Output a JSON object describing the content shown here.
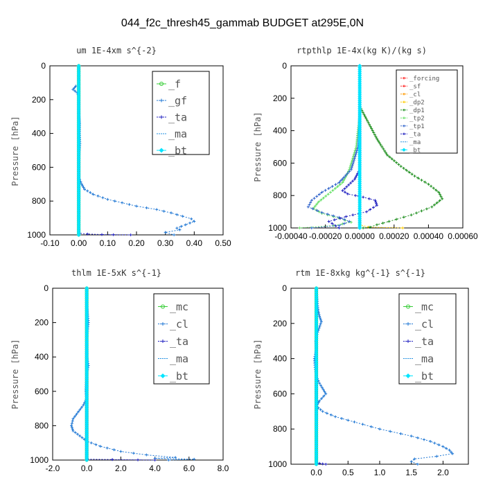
{
  "figure_title": "044_f2c_thresh45_gammab  BUDGET at295E,0N",
  "chart_data": [
    {
      "type": "line",
      "title": "um  1E-4xm s^{-2}",
      "ylabel": "Pressure [hPa]",
      "xlim": [
        -0.1,
        0.5
      ],
      "ylim": [
        1000,
        0
      ],
      "xticks": [
        "-0.10",
        "0.00",
        "0.10",
        "0.20",
        "0.30",
        "0.40",
        "0.50"
      ],
      "xtick_values": [
        -0.1,
        0.0,
        0.1,
        0.2,
        0.3,
        0.4,
        0.5
      ],
      "yticks": [
        "0",
        "200",
        "400",
        "600",
        "800",
        "1000"
      ],
      "ytick_values": [
        0,
        200,
        400,
        600,
        800,
        1000
      ],
      "grid": false,
      "legend_position": "top-right",
      "series": [
        {
          "name": "_f",
          "color": "#33cc33",
          "marker": "o",
          "x": [
            0.0,
            0.0,
            0.0,
            0.0,
            0.0,
            0.0
          ],
          "y": [
            0,
            200,
            400,
            600,
            800,
            1000
          ]
        },
        {
          "name": "_gf",
          "color": "#1f77d4",
          "marker": "+",
          "x": [
            -0.01,
            -0.02,
            -0.005,
            0.0,
            0.0,
            0.0,
            0.003,
            0.002,
            0.004,
            0.0,
            0.0,
            0.01,
            0.02,
            0.05,
            0.1,
            0.15,
            0.2,
            0.27,
            0.32,
            0.36,
            0.39,
            0.4,
            0.37,
            0.34,
            0.35,
            0.3,
            0.33
          ],
          "y": [
            120,
            140,
            160,
            180,
            220,
            280,
            340,
            400,
            460,
            560,
            660,
            700,
            730,
            760,
            790,
            810,
            830,
            850,
            870,
            890,
            905,
            920,
            940,
            960,
            970,
            985,
            1000
          ]
        },
        {
          "name": "_ta",
          "color": "#2020c0",
          "marker": "+",
          "x": [
            0.0,
            0.0,
            0.0,
            0.03,
            0.08,
            0.12,
            0.18
          ],
          "y": [
            0,
            600,
            990,
            995,
            998,
            999,
            1000
          ]
        },
        {
          "name": "_ma",
          "color": "#1f8fe0",
          "marker": "-",
          "x": [
            0.0,
            0.0,
            0.0
          ],
          "y": [
            0,
            500,
            1000
          ]
        },
        {
          "name": "_bt",
          "color": "#00e5ff",
          "marker": "d",
          "x": [
            0.0,
            0.0,
            0.0
          ],
          "y": [
            0,
            500,
            1000
          ]
        }
      ]
    },
    {
      "type": "line",
      "title": "rtpthlp  1E-4x(kg K)/(kg s)",
      "ylabel": "Pressure [hPa]",
      "xlim": [
        -0.0004,
        0.0006
      ],
      "ylim": [
        1000,
        0
      ],
      "xticks": [
        "-0.00040",
        "-0.00020",
        "0.00000",
        "0.00020",
        "0.00040",
        "0.00060"
      ],
      "xtick_values": [
        -0.0004,
        -0.0002,
        0.0,
        0.0002,
        0.0004,
        0.0006
      ],
      "yticks": [
        "0",
        "200",
        "400",
        "600",
        "800",
        "1000"
      ],
      "ytick_values": [
        0,
        200,
        400,
        600,
        800,
        1000
      ],
      "grid": false,
      "legend_position": "top-right",
      "series": [
        {
          "name": "_forcing",
          "color": "#ff2020",
          "marker": "+",
          "x": [
            0.0,
            0.0,
            0.0
          ],
          "y": [
            0,
            500,
            1000
          ]
        },
        {
          "name": "_sf",
          "color": "#ff2020",
          "marker": "+",
          "x": [
            0.0,
            0.0,
            0.0
          ],
          "y": [
            0,
            500,
            1000
          ]
        },
        {
          "name": "_cl",
          "color": "#ff9900",
          "marker": "+",
          "x": [
            0.0,
            0.0,
            0.0
          ],
          "y": [
            0,
            500,
            1000
          ]
        },
        {
          "name": "_dp2",
          "color": "#ffcc00",
          "marker": "+",
          "x": [
            0.0,
            0.0,
            5e-05,
            0.00025
          ],
          "y": [
            0,
            980,
            995,
            1000
          ]
        },
        {
          "name": "_dp1",
          "color": "#1f8f1f",
          "marker": "+",
          "x": [
            0.0,
            0.0,
            5e-05,
            0.0001,
            0.00016,
            0.00024,
            0.00032,
            0.0004,
            0.00046,
            0.00048,
            0.00042,
            0.0003,
            0.00017,
            0.0001,
            6e-05,
            2e-05
          ],
          "y": [
            0,
            250,
            350,
            450,
            550,
            620,
            680,
            730,
            780,
            820,
            870,
            920,
            960,
            980,
            995,
            1000
          ]
        },
        {
          "name": "_tp2",
          "color": "#66e066",
          "marker": "+",
          "x": [
            0.0,
            -2e-05,
            -6e-05,
            -0.0001,
            -0.00017,
            -0.00024,
            -0.00027,
            -0.00022,
            -0.00012,
            -5e-05,
            -0.00015,
            -0.00035
          ],
          "y": [
            300,
            500,
            640,
            720,
            780,
            840,
            880,
            910,
            940,
            965,
            985,
            1000
          ]
        },
        {
          "name": "_tp1",
          "color": "#3366cc",
          "marker": "+",
          "x": [
            0.0,
            -1e-05,
            -5e-05,
            -0.00012,
            -0.00022,
            -0.00028,
            -0.0003,
            -0.00022,
            -0.00012,
            -6e-05,
            -0.00012,
            -0.00028
          ],
          "y": [
            300,
            500,
            640,
            720,
            780,
            830,
            870,
            905,
            935,
            960,
            985,
            1000
          ]
        },
        {
          "name": "_ta",
          "color": "#2020c0",
          "marker": "+",
          "x": [
            0.0,
            0.0,
            -3e-05,
            -0.0001,
            -7e-05,
            2e-05,
            9e-05,
            0.0001,
            4e-05,
            -8e-05,
            -0.00018,
            -0.00012
          ],
          "y": [
            0,
            640,
            700,
            770,
            790,
            810,
            830,
            860,
            900,
            930,
            960,
            1000
          ]
        },
        {
          "name": "_ma",
          "color": "#1f8fe0",
          "marker": "-",
          "x": [
            0.0,
            0.0,
            0.0
          ],
          "y": [
            0,
            500,
            1000
          ]
        },
        {
          "name": "_bt",
          "color": "#00e5ff",
          "marker": "d",
          "x": [
            0.0,
            0.0,
            0.0
          ],
          "y": [
            0,
            500,
            1000
          ]
        }
      ]
    },
    {
      "type": "line",
      "title": "thlm  1E-5xK s^{-1}",
      "ylabel": "Pressure [hPa]",
      "xlim": [
        -2.0,
        8.0
      ],
      "ylim": [
        1000,
        0
      ],
      "xticks": [
        "-2.0",
        "0.0",
        "2.0",
        "4.0",
        "6.0",
        "8.0"
      ],
      "xtick_values": [
        -2.0,
        0.0,
        2.0,
        4.0,
        6.0,
        8.0
      ],
      "yticks": [
        "0",
        "200",
        "400",
        "600",
        "800",
        "1000"
      ],
      "ytick_values": [
        0,
        200,
        400,
        600,
        800,
        1000
      ],
      "grid": false,
      "legend_position": "top-right",
      "series": [
        {
          "name": "_mc",
          "color": "#33cc33",
          "marker": "o",
          "x": [
            0.0,
            0.0,
            0.0,
            0.0,
            0.0,
            0.0
          ],
          "y": [
            0,
            200,
            400,
            600,
            800,
            1000
          ]
        },
        {
          "name": "_cl",
          "color": "#1f77d4",
          "marker": "+",
          "x": [
            0.0,
            0.0,
            0.05,
            0.1,
            0.0,
            0.0,
            0.1,
            0.0,
            -0.05,
            0.0,
            -0.2,
            -0.5,
            -0.8,
            -0.9,
            -0.8,
            -0.4,
            0.0,
            0.8,
            2.0,
            3.5,
            5.2,
            4.0,
            6.3,
            4.8
          ],
          "y": [
            0,
            100,
            150,
            200,
            300,
            400,
            450,
            500,
            600,
            640,
            680,
            720,
            760,
            800,
            830,
            860,
            890,
            920,
            950,
            970,
            985,
            990,
            995,
            1000
          ]
        },
        {
          "name": "_ta",
          "color": "#2020c0",
          "marker": "+",
          "x": [
            0.0,
            0.0,
            0.0,
            1.5,
            3.0,
            4.0
          ],
          "y": [
            0,
            600,
            995,
            997,
            999,
            1000
          ]
        },
        {
          "name": "_ma",
          "color": "#1f8fe0",
          "marker": "-",
          "x": [
            0.0,
            0.0,
            0.0
          ],
          "y": [
            0,
            500,
            1000
          ]
        },
        {
          "name": "_bt",
          "color": "#00e5ff",
          "marker": "d",
          "x": [
            0.0,
            0.0,
            0.0
          ],
          "y": [
            0,
            500,
            1000
          ]
        }
      ]
    },
    {
      "type": "line",
      "title": "rtm  1E-8xkg kg^{-1} s^{-1}",
      "ylabel": "Pressure [hPa]",
      "xlim": [
        -0.4,
        2.4
      ],
      "ylim": [
        1000,
        0
      ],
      "xticks": [
        "0.0",
        "0.5",
        "1.0",
        "1.5",
        "2.0"
      ],
      "xtick_values": [
        0.0,
        0.5,
        1.0,
        1.5,
        2.0
      ],
      "yticks": [
        "0",
        "200",
        "400",
        "600",
        "800",
        "1000"
      ],
      "ytick_values": [
        0,
        200,
        400,
        600,
        800,
        1000
      ],
      "grid": false,
      "legend_position": "top-right",
      "series": [
        {
          "name": "_mc",
          "color": "#33cc33",
          "marker": "o",
          "x": [
            0.0,
            0.0,
            0.0,
            0.0,
            0.0,
            0.0
          ],
          "y": [
            0,
            200,
            400,
            600,
            800,
            1000
          ]
        },
        {
          "name": "_cl",
          "color": "#1f77d4",
          "marker": "+",
          "x": [
            0.0,
            0.02,
            0.03,
            0.05,
            0.08,
            0.02,
            -0.01,
            0.0,
            -0.03,
            -0.02,
            0.0,
            0.05,
            0.15,
            0.05,
            0.0,
            0.1,
            0.3,
            0.6,
            1.0,
            1.5,
            1.8,
            2.0,
            2.1,
            2.15,
            1.9,
            1.55,
            1.5,
            1.6
          ],
          "y": [
            0,
            100,
            130,
            160,
            190,
            250,
            300,
            350,
            400,
            450,
            500,
            540,
            600,
            640,
            670,
            700,
            730,
            760,
            800,
            840,
            870,
            900,
            920,
            940,
            955,
            970,
            985,
            1000
          ]
        },
        {
          "name": "_ta",
          "color": "#2020c0",
          "marker": "+",
          "x": [
            0.0,
            0.0,
            0.0,
            0.05,
            0.1,
            0.15
          ],
          "y": [
            0,
            600,
            990,
            995,
            998,
            1000
          ]
        },
        {
          "name": "_ma",
          "color": "#1f8fe0",
          "marker": "-",
          "x": [
            0.0,
            0.0,
            0.0
          ],
          "y": [
            0,
            500,
            1000
          ]
        },
        {
          "name": "_bt",
          "color": "#00e5ff",
          "marker": "d",
          "x": [
            0.0,
            0.0,
            0.0
          ],
          "y": [
            0,
            500,
            1000
          ]
        }
      ]
    }
  ]
}
